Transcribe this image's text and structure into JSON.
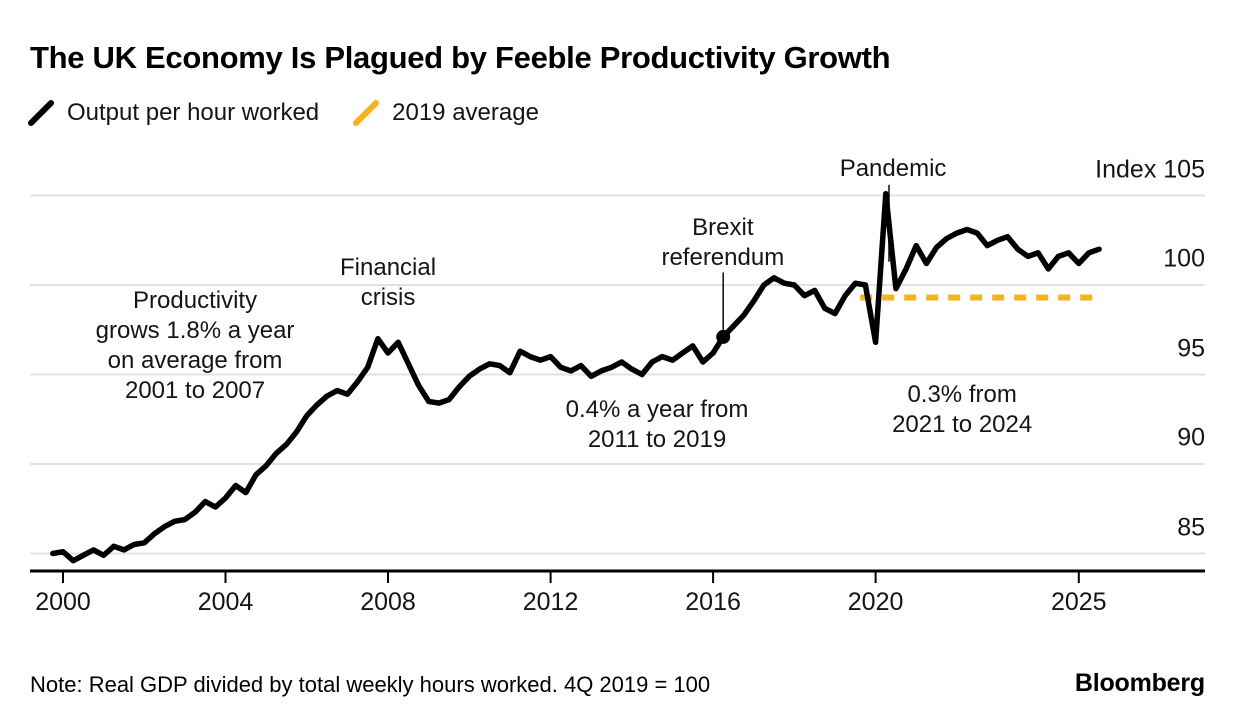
{
  "chart_data": {
    "type": "line",
    "title": "The UK Economy Is Plagued by Feeble Productivity Growth",
    "legend": [
      {
        "label": "Output per hour worked",
        "color": "#000000",
        "style": "solid"
      },
      {
        "label": "2019 average",
        "color": "#F5B31E",
        "style": "dashed"
      }
    ],
    "y_axis": {
      "range": [
        84,
        106.8
      ],
      "grid": true,
      "ticks": [
        {
          "value": 105,
          "label": "Index 105"
        },
        {
          "value": 100,
          "label": "100"
        },
        {
          "value": 95,
          "label": "95"
        },
        {
          "value": 90,
          "label": "90"
        },
        {
          "value": 85,
          "label": "85"
        }
      ]
    },
    "x_axis": {
      "range": [
        1999.5,
        2028
      ],
      "ticks": [
        {
          "value": 2000,
          "label": "2000"
        },
        {
          "value": 2004,
          "label": "2004"
        },
        {
          "value": 2008,
          "label": "2008"
        },
        {
          "value": 2012,
          "label": "2012"
        },
        {
          "value": 2016,
          "label": "2016"
        },
        {
          "value": 2020,
          "label": "2020"
        },
        {
          "value": 2025,
          "label": "2025"
        }
      ]
    },
    "series": [
      {
        "name": "Output per hour worked",
        "color": "#000000",
        "points": [
          [
            1999.75,
            85.0
          ],
          [
            2000,
            85.1
          ],
          [
            2000.25,
            84.6
          ],
          [
            2000.5,
            84.9
          ],
          [
            2000.75,
            85.2
          ],
          [
            2001,
            84.9
          ],
          [
            2001.25,
            85.4
          ],
          [
            2001.5,
            85.2
          ],
          [
            2001.75,
            85.5
          ],
          [
            2002,
            85.6
          ],
          [
            2002.25,
            86.1
          ],
          [
            2002.5,
            86.5
          ],
          [
            2002.75,
            86.8
          ],
          [
            2003,
            86.9
          ],
          [
            2003.25,
            87.3
          ],
          [
            2003.5,
            87.9
          ],
          [
            2003.75,
            87.6
          ],
          [
            2004,
            88.1
          ],
          [
            2004.25,
            88.8
          ],
          [
            2004.5,
            88.4
          ],
          [
            2004.75,
            89.4
          ],
          [
            2005,
            89.9
          ],
          [
            2005.25,
            90.6
          ],
          [
            2005.5,
            91.1
          ],
          [
            2005.75,
            91.8
          ],
          [
            2006,
            92.7
          ],
          [
            2006.25,
            93.3
          ],
          [
            2006.5,
            93.8
          ],
          [
            2006.75,
            94.1
          ],
          [
            2007,
            93.9
          ],
          [
            2007.25,
            94.6
          ],
          [
            2007.5,
            95.4
          ],
          [
            2007.75,
            97.0
          ],
          [
            2008,
            96.2
          ],
          [
            2008.25,
            96.8
          ],
          [
            2008.5,
            95.6
          ],
          [
            2008.75,
            94.4
          ],
          [
            2009,
            93.5
          ],
          [
            2009.25,
            93.4
          ],
          [
            2009.5,
            93.6
          ],
          [
            2009.75,
            94.3
          ],
          [
            2010,
            94.9
          ],
          [
            2010.25,
            95.3
          ],
          [
            2010.5,
            95.6
          ],
          [
            2010.75,
            95.5
          ],
          [
            2011,
            95.1
          ],
          [
            2011.25,
            96.3
          ],
          [
            2011.5,
            96.0
          ],
          [
            2011.75,
            95.8
          ],
          [
            2012,
            96.0
          ],
          [
            2012.25,
            95.4
          ],
          [
            2012.5,
            95.2
          ],
          [
            2012.75,
            95.5
          ],
          [
            2013,
            94.9
          ],
          [
            2013.25,
            95.2
          ],
          [
            2013.5,
            95.4
          ],
          [
            2013.75,
            95.7
          ],
          [
            2014,
            95.3
          ],
          [
            2014.25,
            95.0
          ],
          [
            2014.5,
            95.7
          ],
          [
            2014.75,
            96.0
          ],
          [
            2015,
            95.8
          ],
          [
            2015.25,
            96.2
          ],
          [
            2015.5,
            96.6
          ],
          [
            2015.75,
            95.7
          ],
          [
            2016,
            96.2
          ],
          [
            2016.25,
            97.1
          ],
          [
            2016.5,
            97.7
          ],
          [
            2016.75,
            98.3
          ],
          [
            2017,
            99.1
          ],
          [
            2017.25,
            100.0
          ],
          [
            2017.5,
            100.4
          ],
          [
            2017.75,
            100.1
          ],
          [
            2018,
            100.0
          ],
          [
            2018.25,
            99.4
          ],
          [
            2018.5,
            99.7
          ],
          [
            2018.75,
            98.7
          ],
          [
            2019,
            98.4
          ],
          [
            2019.25,
            99.4
          ],
          [
            2019.5,
            100.1
          ],
          [
            2019.75,
            100.0
          ],
          [
            2020,
            96.8
          ],
          [
            2020.25,
            105.1
          ],
          [
            2020.5,
            99.8
          ],
          [
            2020.75,
            100.9
          ],
          [
            2021,
            102.2
          ],
          [
            2021.25,
            101.2
          ],
          [
            2021.5,
            102.1
          ],
          [
            2021.75,
            102.6
          ],
          [
            2022,
            102.9
          ],
          [
            2022.25,
            103.1
          ],
          [
            2022.5,
            102.9
          ],
          [
            2022.75,
            102.2
          ],
          [
            2023,
            102.5
          ],
          [
            2023.25,
            102.7
          ],
          [
            2023.5,
            102.0
          ],
          [
            2023.75,
            101.6
          ],
          [
            2024,
            101.8
          ],
          [
            2024.25,
            100.9
          ],
          [
            2024.5,
            101.6
          ],
          [
            2024.75,
            101.8
          ],
          [
            2025,
            101.2
          ],
          [
            2025.25,
            101.8
          ],
          [
            2025.5,
            102.0
          ]
        ]
      }
    ],
    "reference_line": {
      "name": "2019 average",
      "value": 99.3,
      "year_start": 2019.62,
      "year_end": 2025.52,
      "color": "#F5B31E"
    },
    "marker": {
      "label": "Brexit referendum",
      "year": 2016.25,
      "value": 97.1
    },
    "annotations": [
      {
        "id": "productivity-2001-2007",
        "lines": [
          "Productivity",
          "grows 1.8% a year",
          "on average from",
          "2001 to 2007"
        ],
        "year": 2003.25,
        "value": 96.6
      },
      {
        "id": "financial-crisis",
        "lines": [
          "Financial",
          "crisis"
        ],
        "year": 2008.0,
        "value": 100.1
      },
      {
        "id": "brexit-referendum",
        "lines": [
          "Brexit",
          "referendum"
        ],
        "year": 2016.24,
        "value": 102.35,
        "leader": {
          "year": 2016.25,
          "value_from": 100.7,
          "value_to": 97.5
        }
      },
      {
        "id": "pandemic",
        "lines": [
          "Pandemic"
        ],
        "year": 2020.43,
        "value": 106.5,
        "leader": {
          "year": 2020.33,
          "value_from": 105.6,
          "value_to": 101.3
        }
      },
      {
        "id": "growth-2011-2019",
        "lines": [
          "0.4% a year from",
          "2011 to 2019"
        ],
        "year": 2014.62,
        "value": 92.2
      },
      {
        "id": "growth-2021-2024",
        "lines": [
          "0.3% from",
          "2021 to 2024"
        ],
        "year": 2022.13,
        "value": 93.0
      }
    ]
  },
  "footer": {
    "note": "Note: Real GDP divided by total weekly hours worked. 4Q 2019 = 100",
    "brand": "Bloomberg"
  }
}
